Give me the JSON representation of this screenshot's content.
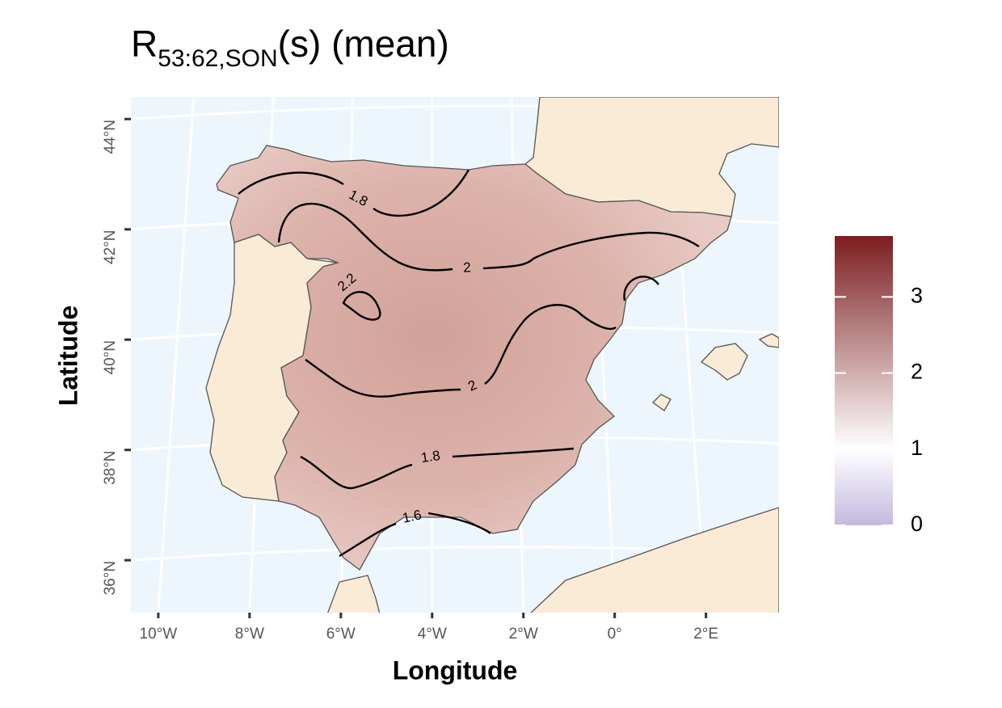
{
  "title": {
    "main": "R",
    "subscript": "53:62,SON",
    "rest": "(s) (mean)"
  },
  "x_axis": {
    "label": "Longitude",
    "lim": [
      -10.6,
      3.6
    ],
    "ticks": [
      {
        "value": -10,
        "label": "10°W"
      },
      {
        "value": -8,
        "label": "8°W"
      },
      {
        "value": -6,
        "label": "6°W"
      },
      {
        "value": -4,
        "label": "4°W"
      },
      {
        "value": -2,
        "label": "2°W"
      },
      {
        "value": 0,
        "label": "0°"
      },
      {
        "value": 2,
        "label": "2°E"
      }
    ]
  },
  "y_axis": {
    "label": "Latitude",
    "lim": [
      35.05,
      44.4
    ],
    "ticks": [
      {
        "value": 36,
        "label": "36°N"
      },
      {
        "value": 38,
        "label": "38°N"
      },
      {
        "value": 40,
        "label": "40°N"
      },
      {
        "value": 42,
        "label": "42°N"
      },
      {
        "value": 44,
        "label": "44°N"
      }
    ]
  },
  "legend": {
    "limits": [
      0,
      3.8
    ],
    "ticks": [
      0,
      1,
      2,
      3
    ],
    "colors": [
      "#c3b9df",
      "#ffffff",
      "#7c1d1f"
    ],
    "color_values": [
      0,
      1,
      3.8
    ]
  },
  "contours": [
    {
      "level": 1.8
    },
    {
      "level": 2
    },
    {
      "level": 2
    },
    {
      "level": 2.2
    },
    {
      "level": 2
    },
    {
      "level": 1.8
    },
    {
      "level": 1.6
    }
  ],
  "colors": {
    "ocean": "#eef6fd",
    "land": "#faebd7",
    "grid": "#ffffff"
  }
}
